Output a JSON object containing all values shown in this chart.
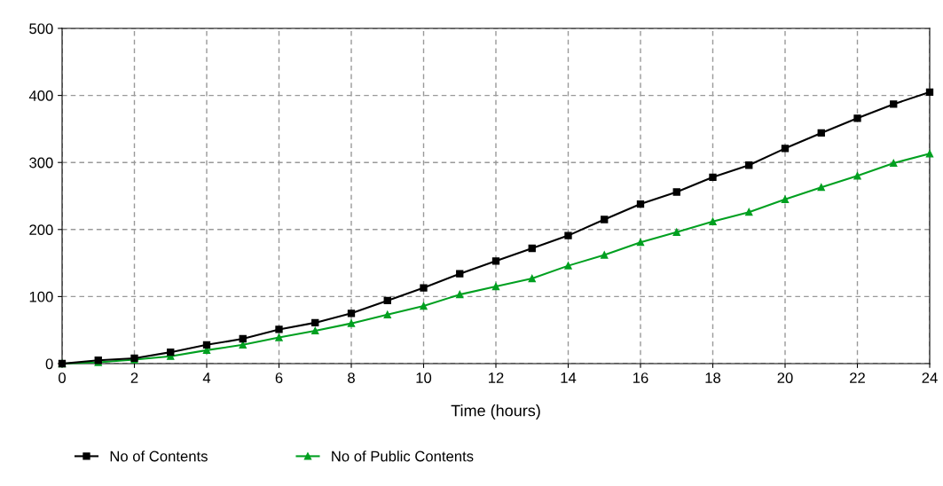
{
  "chart_data": {
    "type": "line",
    "xlabel": "Time (hours)",
    "x": [
      0,
      1,
      2,
      3,
      4,
      5,
      6,
      7,
      8,
      9,
      10,
      11,
      12,
      13,
      14,
      15,
      16,
      17,
      18,
      19,
      20,
      21,
      22,
      23,
      24
    ],
    "series": [
      {
        "name": "No of Contents",
        "color": "#000000",
        "marker": "square",
        "values": [
          0,
          5,
          8,
          17,
          28,
          37,
          51,
          61,
          75,
          94,
          113,
          134,
          153,
          172,
          191,
          215,
          238,
          256,
          278,
          296,
          321,
          344,
          366,
          387,
          405
        ]
      },
      {
        "name": "No of Public Contents",
        "color": "#00a020",
        "marker": "triangle",
        "values": [
          0,
          2,
          6,
          11,
          20,
          28,
          39,
          49,
          60,
          73,
          86,
          103,
          115,
          127,
          146,
          162,
          181,
          196,
          212,
          226,
          245,
          263,
          280,
          299,
          313
        ]
      }
    ],
    "xlim": [
      0,
      24
    ],
    "xticks": [
      0,
      2,
      4,
      6,
      8,
      10,
      12,
      14,
      16,
      18,
      20,
      22,
      24
    ],
    "ylim": [
      0,
      500
    ],
    "yticks": [
      0,
      100,
      200,
      300,
      400,
      500
    ],
    "grid": true,
    "legend": "bottom left",
    "line_style": "solid"
  }
}
